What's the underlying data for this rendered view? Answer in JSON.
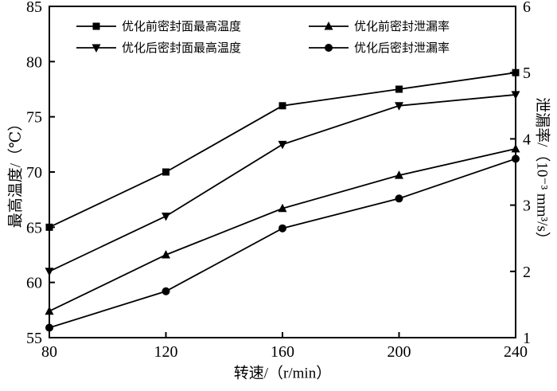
{
  "chart_data": {
    "type": "line",
    "xlabel": "转速/（r/min）",
    "ylabel_left": "最高温度/（℃）",
    "ylabel_right": "泄漏率/（10⁻³ mm³/s）",
    "x": [
      80,
      120,
      160,
      200,
      240
    ],
    "x_range": [
      80,
      240
    ],
    "x_ticks": [
      80,
      120,
      160,
      200,
      240
    ],
    "y_left_range": [
      55,
      85
    ],
    "y_left_ticks": [
      55,
      60,
      65,
      70,
      75,
      80,
      85
    ],
    "y_right_range": [
      1,
      6
    ],
    "y_right_ticks": [
      1,
      2,
      3,
      4,
      5,
      6
    ],
    "grid": false,
    "color": "#000000",
    "legend_position": "top-inside",
    "series": [
      {
        "name": "优化前密封面最高温度",
        "marker": "square",
        "axis": "left",
        "values": [
          65,
          70,
          76,
          77.5,
          79
        ]
      },
      {
        "name": "优化后密封面最高温度",
        "marker": "triangle-down",
        "axis": "left",
        "values": [
          61,
          66,
          72.5,
          76,
          77
        ]
      },
      {
        "name": "优化前密封泄漏率",
        "marker": "triangle-up",
        "axis": "right",
        "values": [
          1.4,
          2.25,
          2.95,
          3.45,
          3.85
        ]
      },
      {
        "name": "优化后密封泄漏率",
        "marker": "circle",
        "axis": "right",
        "values": [
          1.15,
          1.7,
          2.65,
          3.1,
          3.7
        ]
      }
    ],
    "legend_rows": [
      [
        0,
        2
      ],
      [
        1,
        3
      ]
    ]
  }
}
